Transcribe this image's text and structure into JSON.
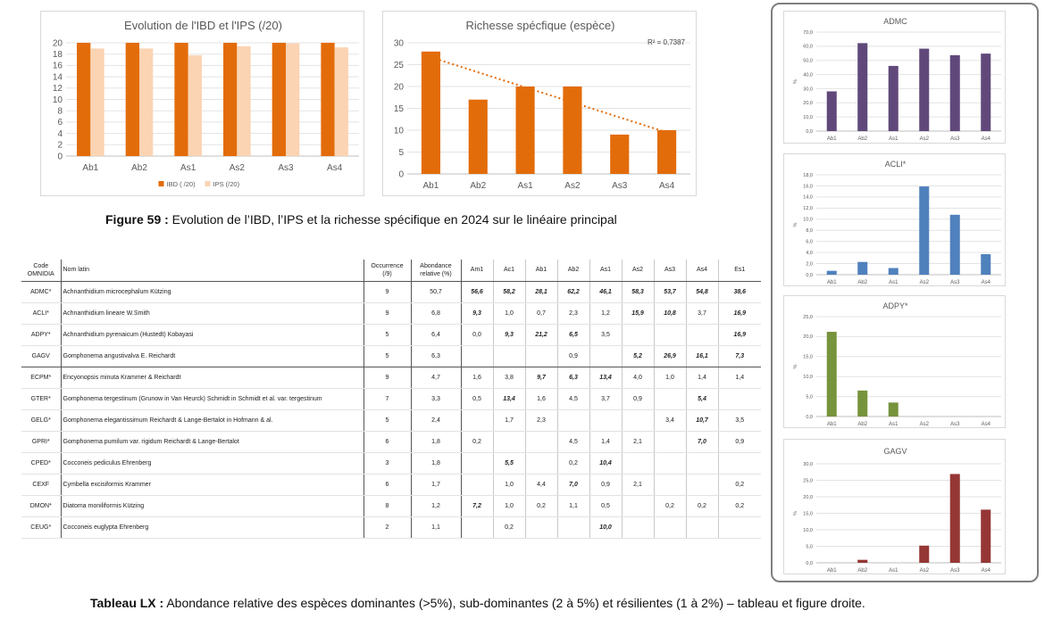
{
  "chart_data": [
    {
      "type": "bar",
      "title": "Evolution de l'IBD et l'IPS (/20)",
      "categories": [
        "Ab1",
        "Ab2",
        "As1",
        "As2",
        "As3",
        "As4"
      ],
      "series": [
        {
          "name": "IBD ( /20)",
          "values": [
            20,
            20,
            20,
            20,
            20,
            20
          ],
          "color": "#E36C0A"
        },
        {
          "name": "IPS (/20)",
          "values": [
            19.0,
            19.0,
            17.8,
            19.4,
            19.9,
            19.2
          ],
          "color": "#FBD4B4"
        }
      ],
      "ylim": [
        0,
        20
      ],
      "yticks": [
        "0",
        "2",
        "4",
        "6",
        "8",
        "10",
        "12",
        "14",
        "16",
        "18",
        "20"
      ],
      "legend": "bottom",
      "grid": true
    },
    {
      "type": "bar",
      "title": "Richesse spécfique (espèce)",
      "categories": [
        "Ab1",
        "Ab2",
        "As1",
        "As2",
        "As3",
        "As4"
      ],
      "series": [
        {
          "values": [
            28,
            17,
            20,
            20,
            9,
            10
          ],
          "color": "#E36C0A"
        }
      ],
      "trendline": {
        "type": "linear",
        "start": 26.7,
        "end": 9.5,
        "label": "R² = 0,7387",
        "color": "#E36C0A"
      },
      "ylim": [
        0,
        30
      ],
      "yticks": [
        "0",
        "5",
        "10",
        "15",
        "20",
        "25",
        "30"
      ],
      "grid": true
    },
    {
      "type": "bar",
      "title": "ADMC",
      "ylabel": "%",
      "categories": [
        "Ab1",
        "Ab2",
        "As1",
        "As2",
        "As3",
        "As4"
      ],
      "series": [
        {
          "values": [
            28.1,
            62.2,
            46.1,
            58.3,
            53.7,
            54.8
          ],
          "color": "#60497A"
        }
      ],
      "ylim": [
        0,
        70
      ],
      "yticks": [
        "0,0",
        "10,0",
        "20,0",
        "30,0",
        "40,0",
        "50,0",
        "60,0",
        "70,0"
      ],
      "grid": true
    },
    {
      "type": "bar",
      "title": "ACLI*",
      "ylabel": "%",
      "categories": [
        "Ab1",
        "Ab2",
        "As1",
        "As2",
        "As3",
        "As4"
      ],
      "series": [
        {
          "values": [
            0.7,
            2.3,
            1.2,
            15.9,
            10.8,
            3.7
          ],
          "color": "#4F81BD"
        }
      ],
      "ylim": [
        0,
        18
      ],
      "yticks": [
        "0,0",
        "2,0",
        "4,0",
        "6,0",
        "8,0",
        "10,0",
        "12,0",
        "14,0",
        "16,0",
        "18,0"
      ],
      "grid": true
    },
    {
      "type": "bar",
      "title": "ADPY*",
      "ylabel": "%",
      "categories": [
        "Ab1",
        "Ab2",
        "As1",
        "As2",
        "As3",
        "As4"
      ],
      "series": [
        {
          "values": [
            21.2,
            6.5,
            3.5,
            0,
            0,
            0
          ],
          "color": "#77933C"
        }
      ],
      "ylim": [
        0,
        25
      ],
      "yticks": [
        "0,0",
        "5,0",
        "10,0",
        "15,0",
        "20,0",
        "25,0"
      ],
      "grid": true
    },
    {
      "type": "bar",
      "title": "GAGV",
      "ylabel": "%",
      "categories": [
        "Ab1",
        "Ab2",
        "As1",
        "As2",
        "As3",
        "As4"
      ],
      "series": [
        {
          "values": [
            0,
            0.9,
            0,
            5.2,
            26.9,
            16.1
          ],
          "color": "#953735"
        }
      ],
      "ylim": [
        0,
        30
      ],
      "yticks": [
        "0,0",
        "5,0",
        "10,0",
        "15,0",
        "20,0",
        "25,0",
        "30,0"
      ],
      "grid": true
    }
  ],
  "captions": {
    "figure_label": "Figure 59 :",
    "figure_text": "  Evolution de l’IBD, l’IPS et la richesse spécifique en 2024 sur le linéaire principal",
    "table_label": "Tableau LX :",
    "table_text": " Abondance relative des espèces dominantes (>5%), sub-dominantes (2 à 5%) et résilientes (1 à 2%) – tableau et figure droite."
  },
  "table": {
    "headers": {
      "code": "Code OMNIDIA",
      "latin": "Nom latin",
      "occ": "Occurrence (/9)",
      "ab": "Abondance relative (%)",
      "sites": [
        "Am1",
        "Ac1",
        "Ab1",
        "Ab2",
        "As1",
        "As2",
        "As3",
        "As4",
        "Es1"
      ]
    },
    "rows": [
      {
        "code": "ADMC*",
        "latin": "Achnanthidium microcephalum Kützing",
        "occ": "9",
        "ab": "50,7",
        "cells": [
          "56,6",
          "58,2",
          "28,1",
          "62,2",
          "46,1",
          "58,3",
          "53,7",
          "54,8",
          "38,6"
        ],
        "bold": [
          true,
          true,
          true,
          true,
          true,
          true,
          true,
          true,
          true
        ]
      },
      {
        "code": "ACLI*",
        "latin": "Achnanthidium lineare W.Smith",
        "occ": "9",
        "ab": "6,8",
        "cells": [
          "9,3",
          "1,0",
          "0,7",
          "2,3",
          "1,2",
          "15,9",
          "10,8",
          "3,7",
          "16,9"
        ],
        "bold": [
          true,
          false,
          false,
          false,
          false,
          true,
          true,
          false,
          true
        ]
      },
      {
        "code": "ADPY*",
        "latin": "Achnanthidium pyrenaicum (Hustedt) Kobayasi",
        "occ": "5",
        "ab": "6,4",
        "cells": [
          "0,0",
          "9,3",
          "21,2",
          "6,5",
          "3,5",
          "",
          "",
          "",
          "16,9"
        ],
        "bold": [
          false,
          true,
          true,
          true,
          false,
          false,
          false,
          false,
          true
        ]
      },
      {
        "code": "GAGV",
        "latin": "Gomphonema angustivalva E. Reichardt",
        "occ": "5",
        "ab": "6,3",
        "cells": [
          "",
          "",
          "",
          "0,9",
          "",
          "5,2",
          "26,9",
          "16,1",
          "7,3"
        ],
        "bold": [
          false,
          false,
          false,
          false,
          false,
          true,
          true,
          true,
          true
        ]
      },
      {
        "code": "ECPM*",
        "latin": "Encyonopsis minuta Krammer & Reichardt",
        "occ": "9",
        "ab": "4,7",
        "cells": [
          "1,6",
          "3,8",
          "9,7",
          "6,3",
          "13,4",
          "4,0",
          "1,0",
          "1,4",
          "1,4"
        ],
        "bold": [
          false,
          false,
          true,
          true,
          true,
          false,
          false,
          false,
          false
        ]
      },
      {
        "code": "GTER*",
        "latin": "Gomphonema tergestinum (Grunow in Van Heurck) Schmidt in Schmidt et al. var. tergestinum",
        "occ": "7",
        "ab": "3,3",
        "cells": [
          "0,5",
          "13,4",
          "1,6",
          "4,5",
          "3,7",
          "0,9",
          "",
          "5,4",
          ""
        ],
        "bold": [
          false,
          true,
          false,
          false,
          false,
          false,
          false,
          true,
          false
        ]
      },
      {
        "code": "GELG*",
        "latin": "Gomphonema elegantissimum Reichardt & Lange-Bertalot in Hofmann & al.",
        "occ": "5",
        "ab": "2,4",
        "cells": [
          "",
          "1,7",
          "2,3",
          "",
          "",
          "",
          "3,4",
          "10,7",
          "3,5"
        ],
        "bold": [
          false,
          false,
          false,
          false,
          false,
          false,
          false,
          true,
          false
        ]
      },
      {
        "code": "GPRI*",
        "latin": "Gomphonema pumilum var. rigidum Reichardt & Lange-Bertalot",
        "occ": "6",
        "ab": "1,8",
        "cells": [
          "0,2",
          "",
          "",
          "4,5",
          "1,4",
          "2,1",
          "",
          "7,0",
          "0,9"
        ],
        "bold": [
          false,
          false,
          false,
          false,
          false,
          false,
          false,
          true,
          false
        ]
      },
      {
        "code": "CPED*",
        "latin": "Cocconeis pediculus Ehrenberg",
        "occ": "3",
        "ab": "1,8",
        "cells": [
          "",
          "5,5",
          "",
          "0,2",
          "10,4",
          "",
          "",
          "",
          ""
        ],
        "bold": [
          false,
          true,
          false,
          false,
          true,
          false,
          false,
          false,
          false
        ]
      },
      {
        "code": "CEXF",
        "latin": "Cymbella excisiformis Krammer",
        "occ": "6",
        "ab": "1,7",
        "cells": [
          "",
          "1,0",
          "4,4",
          "7,0",
          "0,9",
          "2,1",
          "",
          "",
          "0,2"
        ],
        "bold": [
          false,
          false,
          false,
          true,
          false,
          false,
          false,
          false,
          false
        ]
      },
      {
        "code": "DMON*",
        "latin": "Diatoma moniliformis Kützing",
        "occ": "8",
        "ab": "1,2",
        "cells": [
          "7,2",
          "1,0",
          "0,2",
          "1,1",
          "0,5",
          "",
          "0,2",
          "0,2",
          "0,2"
        ],
        "bold": [
          true,
          false,
          false,
          false,
          false,
          false,
          false,
          false,
          false
        ]
      },
      {
        "code": "CEUG*",
        "latin": "Cocconeis euglypta Ehrenberg",
        "occ": "2",
        "ab": "1,1",
        "cells": [
          "",
          "0,2",
          "",
          "",
          "10,0",
          "",
          "",
          "",
          ""
        ],
        "bold": [
          false,
          false,
          false,
          false,
          true,
          false,
          false,
          false,
          false
        ]
      }
    ]
  }
}
